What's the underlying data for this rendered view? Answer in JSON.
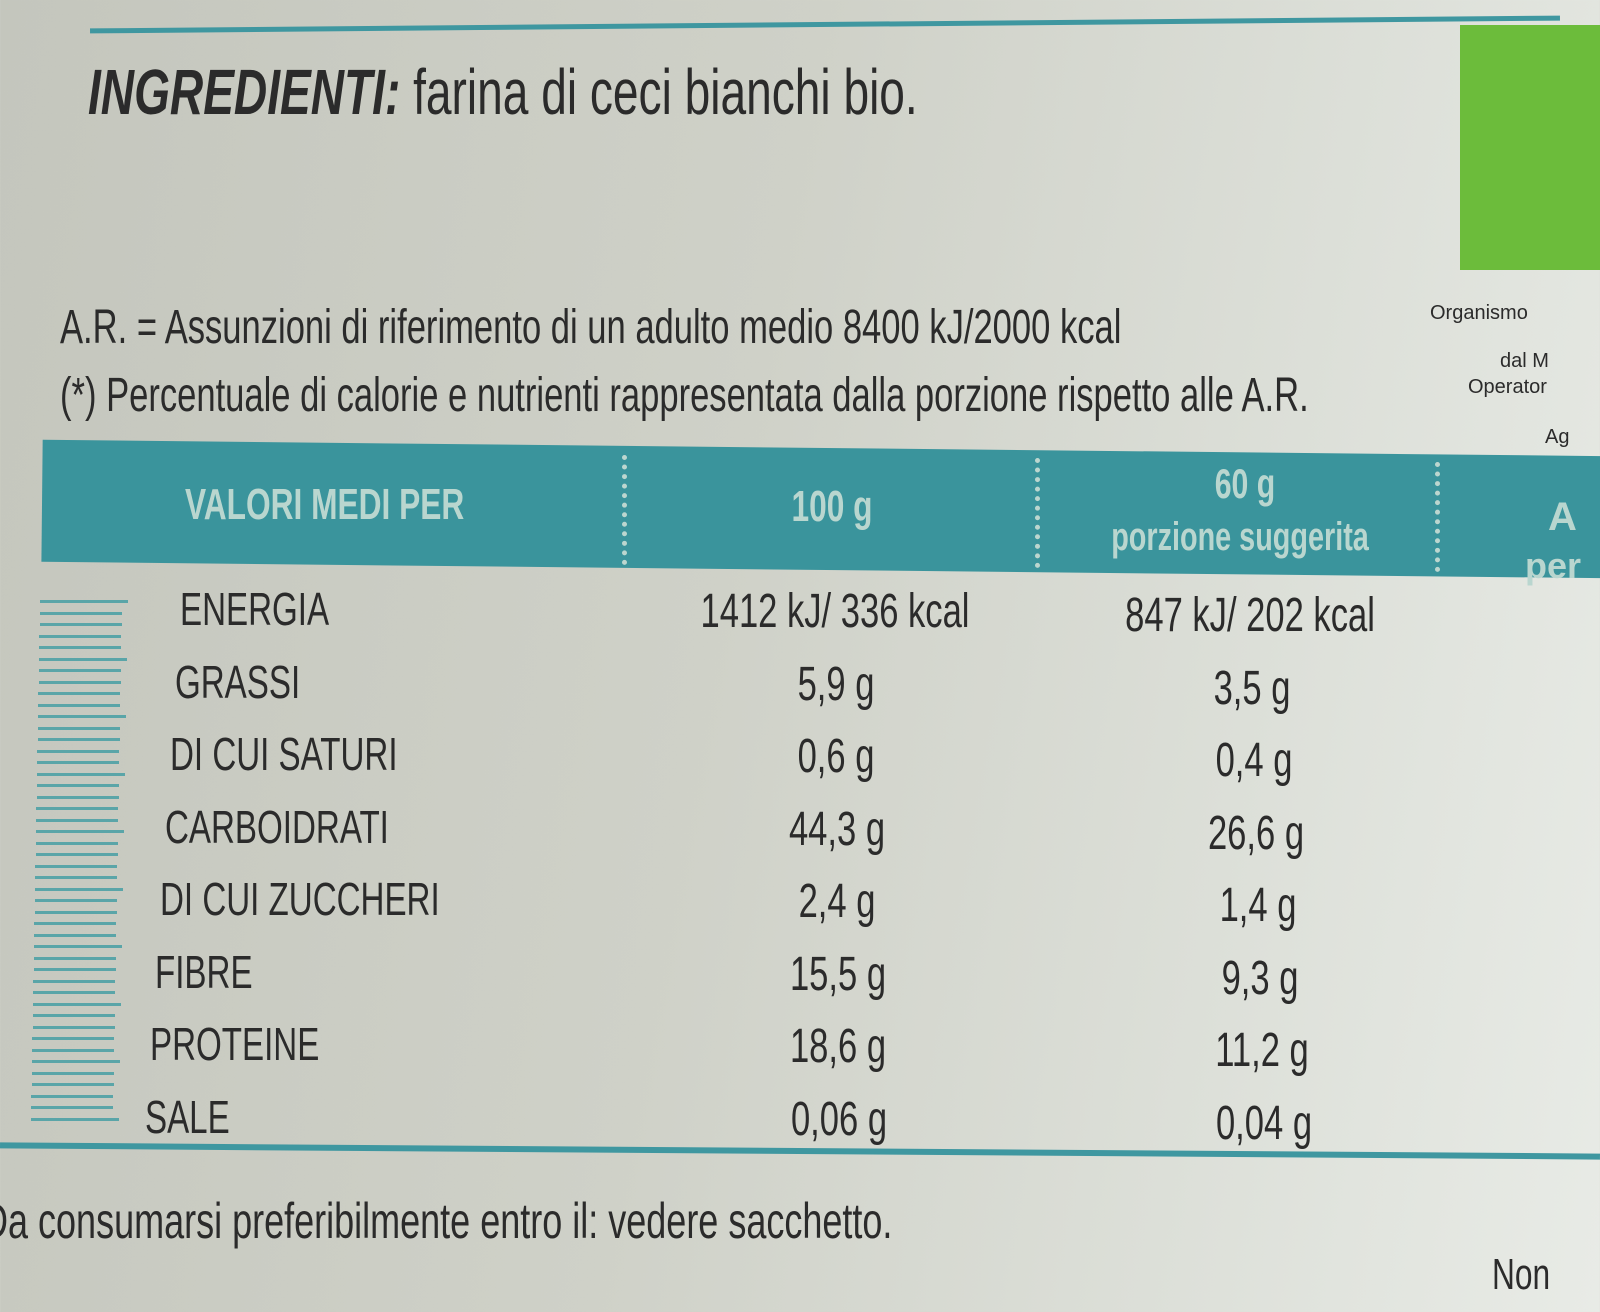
{
  "ingredients": {
    "label": "INGREDIENTI:",
    "text": "farina di ceci bianchi bio."
  },
  "notes": [
    "A.R. = Assunzioni di riferimento di un adulto medio 8400 kJ/2000 kcal",
    "(*) Percentuale di calorie e nutrienti rappresentata dalla porzione rispetto alle A.R."
  ],
  "table": {
    "header": [
      "VALORI MEDI PER",
      "100 g",
      {
        "line1": "60 g",
        "line2": "porzione suggerita"
      },
      {
        "line1": "A",
        "line2": "per"
      }
    ],
    "rows": [
      [
        "ENERGIA",
        "1412 kJ/ 336 kcal",
        "847 kJ/ 202 kcal"
      ],
      [
        "GRASSI",
        "5,9 g",
        "3,5 g"
      ],
      [
        "DI CUI SATURI",
        "0,6 g",
        "0,4 g"
      ],
      [
        "CARBOIDRATI",
        "44,3 g",
        "26,6 g"
      ],
      [
        "DI CUI ZUCCHERI",
        "2,4 g",
        "1,4 g"
      ],
      [
        "FIBRE",
        "15,5 g",
        "9,3 g"
      ],
      [
        "PROTEINE",
        "18,6 g",
        "11,2 g"
      ],
      [
        "SALE",
        "0,06 g",
        "0,04 g"
      ]
    ]
  },
  "footer": "Da consumarsi preferibilmente entro il: vedere sacchetto.",
  "side_text": [
    "Organismo",
    "dal M",
    "Operator",
    "Ag"
  ],
  "corner_text": "Non"
}
